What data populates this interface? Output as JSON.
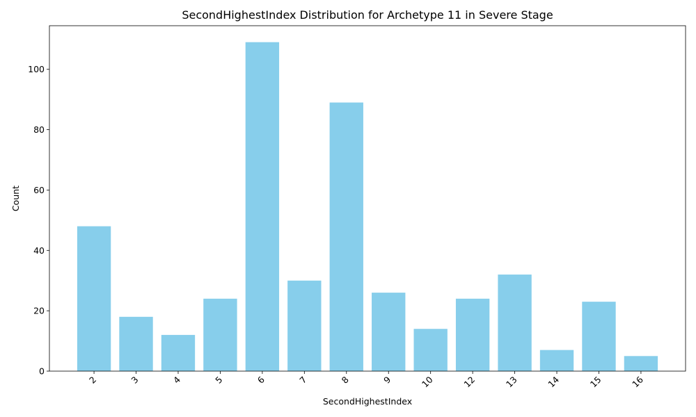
{
  "chart_data": {
    "type": "bar",
    "title": "SecondHighestIndex Distribution for Archetype 11 in Severe Stage",
    "xlabel": "SecondHighestIndex",
    "ylabel": "Count",
    "categories": [
      "2",
      "3",
      "4",
      "5",
      "6",
      "7",
      "8",
      "9",
      "10",
      "12",
      "13",
      "14",
      "15",
      "16"
    ],
    "values": [
      48,
      18,
      12,
      24,
      109,
      30,
      89,
      26,
      14,
      24,
      32,
      7,
      23,
      5
    ],
    "ylim": [
      0,
      114.45
    ],
    "yticks": [
      0,
      20,
      40,
      60,
      80,
      100
    ],
    "x_tick_rotation": 45,
    "bar_color": "#87ceeb",
    "grid": false,
    "legend": "none"
  }
}
